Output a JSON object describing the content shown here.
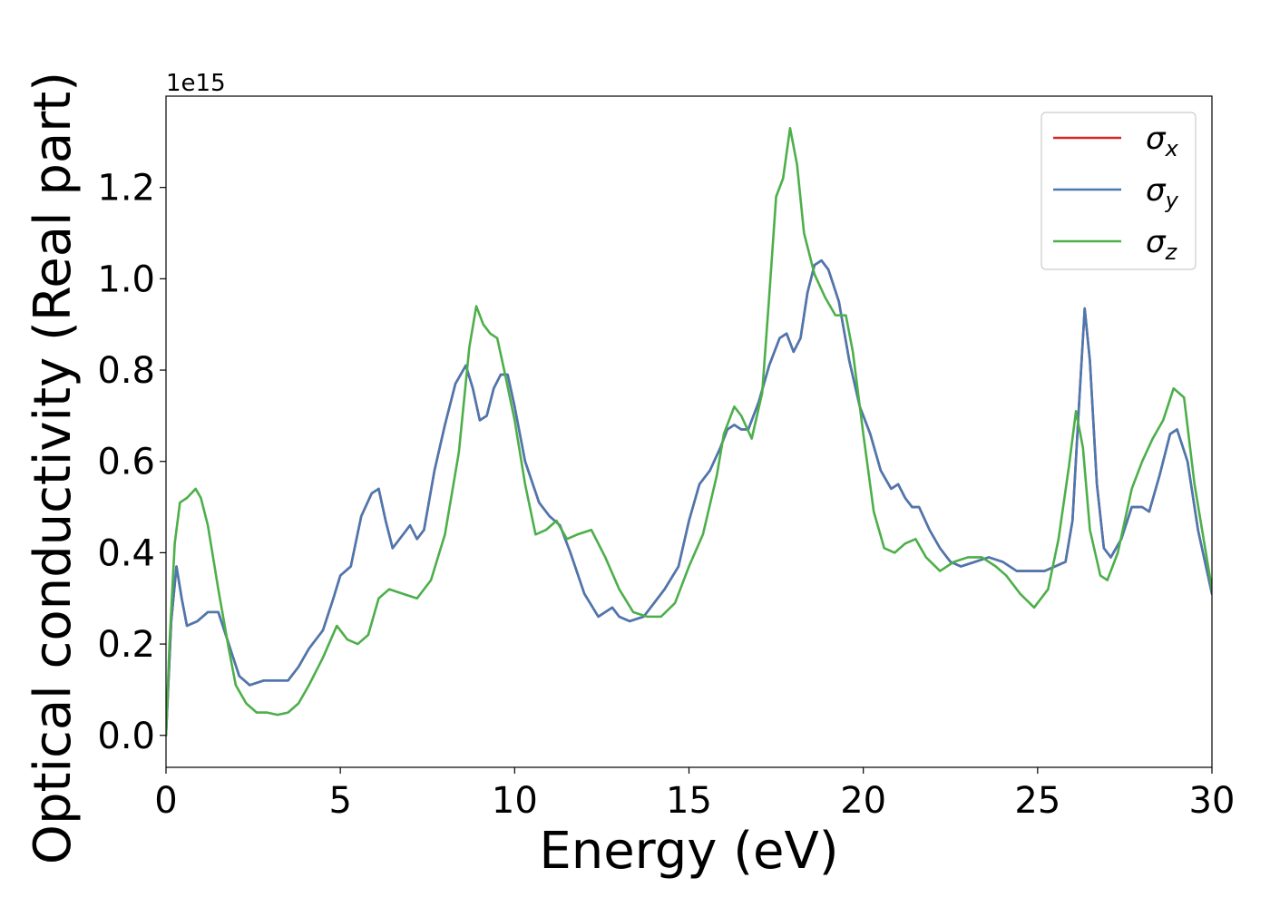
{
  "chart_data": {
    "type": "line",
    "title": "",
    "xlabel": "Energy (eV)",
    "ylabel": "Optical conductivity (Real part)",
    "y_offset_label": "1e15",
    "xlim": [
      0,
      30
    ],
    "ylim": [
      -0.07,
      1.4
    ],
    "x_ticks": [
      0,
      5,
      10,
      15,
      20,
      25,
      30
    ],
    "x_tick_labels": [
      "0",
      "5",
      "10",
      "15",
      "20",
      "25",
      "30"
    ],
    "y_ticks": [
      0.0,
      0.2,
      0.4,
      0.6,
      0.8,
      1.0,
      1.2
    ],
    "y_tick_labels": [
      "0.0",
      "0.2",
      "0.4",
      "0.6",
      "0.8",
      "1.0",
      "1.2"
    ],
    "grid": false,
    "legend_position": "top-right",
    "series": [
      {
        "name": "σx",
        "symbol": "σ",
        "subscript": "x",
        "color": "#d62728",
        "x": [
          0,
          0.15,
          0.3,
          0.45,
          0.6,
          0.9,
          1.2,
          1.5,
          1.8,
          2.1,
          2.4,
          2.8,
          3.2,
          3.5,
          3.8,
          4.1,
          4.5,
          4.8,
          5.0,
          5.3,
          5.6,
          5.9,
          6.1,
          6.3,
          6.5,
          6.8,
          7.0,
          7.2,
          7.4,
          7.7,
          8.0,
          8.3,
          8.6,
          8.8,
          9.0,
          9.2,
          9.4,
          9.6,
          9.8,
          10.0,
          10.3,
          10.7,
          11.0,
          11.3,
          11.6,
          12.0,
          12.4,
          12.8,
          13.0,
          13.3,
          13.7,
          14.0,
          14.3,
          14.7,
          15.0,
          15.3,
          15.6,
          15.9,
          16.1,
          16.3,
          16.5,
          16.7,
          17.0,
          17.3,
          17.6,
          17.8,
          18.0,
          18.2,
          18.4,
          18.6,
          18.8,
          19.0,
          19.3,
          19.6,
          19.9,
          20.2,
          20.5,
          20.8,
          21.0,
          21.2,
          21.4,
          21.6,
          21.9,
          22.2,
          22.5,
          22.8,
          23.2,
          23.6,
          24.0,
          24.4,
          24.8,
          25.2,
          25.5,
          25.8,
          26.0,
          26.2,
          26.35,
          26.5,
          26.7,
          26.9,
          27.1,
          27.4,
          27.7,
          28.0,
          28.2,
          28.5,
          28.8,
          29.0,
          29.3,
          29.6,
          30.0
        ],
        "y": [
          0.0,
          0.25,
          0.37,
          0.3,
          0.24,
          0.25,
          0.27,
          0.27,
          0.2,
          0.13,
          0.11,
          0.12,
          0.12,
          0.12,
          0.15,
          0.19,
          0.23,
          0.3,
          0.35,
          0.37,
          0.48,
          0.53,
          0.54,
          0.47,
          0.41,
          0.44,
          0.46,
          0.43,
          0.45,
          0.58,
          0.68,
          0.77,
          0.81,
          0.76,
          0.69,
          0.7,
          0.76,
          0.79,
          0.79,
          0.72,
          0.6,
          0.51,
          0.48,
          0.46,
          0.4,
          0.31,
          0.26,
          0.28,
          0.26,
          0.25,
          0.26,
          0.29,
          0.32,
          0.37,
          0.47,
          0.55,
          0.58,
          0.63,
          0.67,
          0.68,
          0.67,
          0.67,
          0.73,
          0.81,
          0.87,
          0.88,
          0.84,
          0.87,
          0.97,
          1.03,
          1.04,
          1.02,
          0.95,
          0.82,
          0.72,
          0.66,
          0.58,
          0.54,
          0.55,
          0.52,
          0.5,
          0.5,
          0.45,
          0.41,
          0.38,
          0.37,
          0.38,
          0.39,
          0.38,
          0.36,
          0.36,
          0.36,
          0.37,
          0.38,
          0.47,
          0.74,
          0.935,
          0.82,
          0.55,
          0.41,
          0.39,
          0.43,
          0.5,
          0.5,
          0.49,
          0.57,
          0.66,
          0.67,
          0.6,
          0.45,
          0.31
        ]
      },
      {
        "name": "σy",
        "symbol": "σ",
        "subscript": "y",
        "color": "#4a78b0",
        "x": [
          0,
          0.15,
          0.3,
          0.45,
          0.6,
          0.9,
          1.2,
          1.5,
          1.8,
          2.1,
          2.4,
          2.8,
          3.2,
          3.5,
          3.8,
          4.1,
          4.5,
          4.8,
          5.0,
          5.3,
          5.6,
          5.9,
          6.1,
          6.3,
          6.5,
          6.8,
          7.0,
          7.2,
          7.4,
          7.7,
          8.0,
          8.3,
          8.6,
          8.8,
          9.0,
          9.2,
          9.4,
          9.6,
          9.8,
          10.0,
          10.3,
          10.7,
          11.0,
          11.3,
          11.6,
          12.0,
          12.4,
          12.8,
          13.0,
          13.3,
          13.7,
          14.0,
          14.3,
          14.7,
          15.0,
          15.3,
          15.6,
          15.9,
          16.1,
          16.3,
          16.5,
          16.7,
          17.0,
          17.3,
          17.6,
          17.8,
          18.0,
          18.2,
          18.4,
          18.6,
          18.8,
          19.0,
          19.3,
          19.6,
          19.9,
          20.2,
          20.5,
          20.8,
          21.0,
          21.2,
          21.4,
          21.6,
          21.9,
          22.2,
          22.5,
          22.8,
          23.2,
          23.6,
          24.0,
          24.4,
          24.8,
          25.2,
          25.5,
          25.8,
          26.0,
          26.2,
          26.35,
          26.5,
          26.7,
          26.9,
          27.1,
          27.4,
          27.7,
          28.0,
          28.2,
          28.5,
          28.8,
          29.0,
          29.3,
          29.6,
          30.0
        ],
        "y": [
          0.0,
          0.25,
          0.37,
          0.3,
          0.24,
          0.25,
          0.27,
          0.27,
          0.2,
          0.13,
          0.11,
          0.12,
          0.12,
          0.12,
          0.15,
          0.19,
          0.23,
          0.3,
          0.35,
          0.37,
          0.48,
          0.53,
          0.54,
          0.47,
          0.41,
          0.44,
          0.46,
          0.43,
          0.45,
          0.58,
          0.68,
          0.77,
          0.81,
          0.76,
          0.69,
          0.7,
          0.76,
          0.79,
          0.79,
          0.72,
          0.6,
          0.51,
          0.48,
          0.46,
          0.4,
          0.31,
          0.26,
          0.28,
          0.26,
          0.25,
          0.26,
          0.29,
          0.32,
          0.37,
          0.47,
          0.55,
          0.58,
          0.63,
          0.67,
          0.68,
          0.67,
          0.67,
          0.73,
          0.81,
          0.87,
          0.88,
          0.84,
          0.87,
          0.97,
          1.03,
          1.04,
          1.02,
          0.95,
          0.82,
          0.72,
          0.66,
          0.58,
          0.54,
          0.55,
          0.52,
          0.5,
          0.5,
          0.45,
          0.41,
          0.38,
          0.37,
          0.38,
          0.39,
          0.38,
          0.36,
          0.36,
          0.36,
          0.37,
          0.38,
          0.47,
          0.74,
          0.935,
          0.82,
          0.55,
          0.41,
          0.39,
          0.43,
          0.5,
          0.5,
          0.49,
          0.57,
          0.66,
          0.67,
          0.6,
          0.45,
          0.31
        ]
      },
      {
        "name": "σz",
        "symbol": "σ",
        "subscript": "z",
        "color": "#4daf4a",
        "x": [
          0,
          0.1,
          0.25,
          0.4,
          0.6,
          0.85,
          1.0,
          1.2,
          1.5,
          1.8,
          2.0,
          2.3,
          2.6,
          2.9,
          3.2,
          3.5,
          3.8,
          4.1,
          4.5,
          4.9,
          5.2,
          5.5,
          5.8,
          6.1,
          6.4,
          6.8,
          7.2,
          7.6,
          8.0,
          8.4,
          8.7,
          8.9,
          9.1,
          9.3,
          9.5,
          9.7,
          10.0,
          10.3,
          10.6,
          10.9,
          11.2,
          11.5,
          11.8,
          12.2,
          12.6,
          13.0,
          13.4,
          13.8,
          14.2,
          14.6,
          15.0,
          15.4,
          15.8,
          16.0,
          16.3,
          16.5,
          16.8,
          17.1,
          17.3,
          17.5,
          17.7,
          17.9,
          18.1,
          18.3,
          18.6,
          18.9,
          19.2,
          19.5,
          19.7,
          20.0,
          20.3,
          20.6,
          20.9,
          21.2,
          21.5,
          21.8,
          22.2,
          22.6,
          23.0,
          23.4,
          23.8,
          24.1,
          24.5,
          24.9,
          25.3,
          25.6,
          25.9,
          26.1,
          26.3,
          26.5,
          26.8,
          27.0,
          27.3,
          27.7,
          28.0,
          28.3,
          28.6,
          28.9,
          29.2,
          29.5,
          30.0
        ],
        "y": [
          0.0,
          0.2,
          0.42,
          0.51,
          0.52,
          0.54,
          0.52,
          0.46,
          0.32,
          0.19,
          0.11,
          0.07,
          0.05,
          0.05,
          0.045,
          0.05,
          0.07,
          0.11,
          0.17,
          0.24,
          0.21,
          0.2,
          0.22,
          0.3,
          0.32,
          0.31,
          0.3,
          0.34,
          0.44,
          0.62,
          0.85,
          0.94,
          0.9,
          0.88,
          0.87,
          0.8,
          0.69,
          0.55,
          0.44,
          0.45,
          0.47,
          0.43,
          0.44,
          0.45,
          0.39,
          0.32,
          0.27,
          0.26,
          0.26,
          0.29,
          0.37,
          0.44,
          0.57,
          0.66,
          0.72,
          0.7,
          0.65,
          0.75,
          0.96,
          1.18,
          1.22,
          1.33,
          1.25,
          1.1,
          1.01,
          0.96,
          0.92,
          0.92,
          0.84,
          0.66,
          0.49,
          0.41,
          0.4,
          0.42,
          0.43,
          0.39,
          0.36,
          0.38,
          0.39,
          0.39,
          0.37,
          0.35,
          0.31,
          0.28,
          0.32,
          0.43,
          0.59,
          0.71,
          0.63,
          0.45,
          0.35,
          0.34,
          0.4,
          0.54,
          0.6,
          0.65,
          0.69,
          0.76,
          0.74,
          0.55,
          0.32
        ]
      }
    ]
  }
}
